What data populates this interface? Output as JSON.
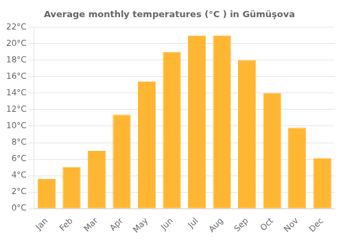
{
  "chart_data": {
    "type": "bar",
    "title": "Average monthly temperatures (°C ) in Gümüşova",
    "categories": [
      "Jan",
      "Feb",
      "Mar",
      "Apr",
      "May",
      "Jun",
      "Jul",
      "Aug",
      "Sep",
      "Oct",
      "Nov",
      "Dec"
    ],
    "values": [
      3.6,
      5.0,
      7.0,
      11.4,
      15.4,
      19.0,
      21.0,
      21.0,
      18.0,
      14.0,
      9.8,
      6.1
    ],
    "color": "#FFB733",
    "ylim": [
      0,
      22
    ],
    "yticks": [
      {
        "value": 0,
        "label": "0°C"
      },
      {
        "value": 2,
        "label": "2°C"
      },
      {
        "value": 4,
        "label": "4°C"
      },
      {
        "value": 6,
        "label": "6°C"
      },
      {
        "value": 8,
        "label": "8°C"
      },
      {
        "value": 10,
        "label": "10°C"
      },
      {
        "value": 12,
        "label": "12°C"
      },
      {
        "value": 14,
        "label": "14°C"
      },
      {
        "value": 16,
        "label": "16°C"
      },
      {
        "value": 18,
        "label": "18°C"
      },
      {
        "value": 20,
        "label": "20°C"
      },
      {
        "value": 22,
        "label": "22°C"
      }
    ],
    "grid": true
  }
}
